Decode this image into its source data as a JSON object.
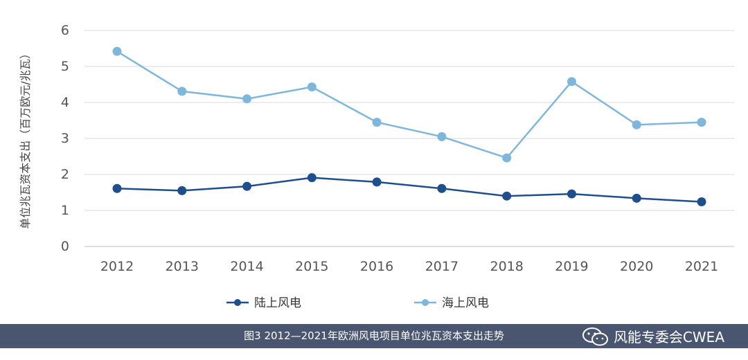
{
  "chart_data": {
    "type": "line",
    "ylabel": "单位兆瓦资本支出（百万欧元/兆瓦）",
    "xlabel": "",
    "categories": [
      "2012",
      "2013",
      "2014",
      "2015",
      "2016",
      "2017",
      "2018",
      "2019",
      "2020",
      "2021"
    ],
    "ylim": [
      0,
      6
    ],
    "yticks": [
      0,
      1,
      2,
      3,
      4,
      5,
      6
    ],
    "grid": true,
    "legend_position": "bottom",
    "series": [
      {
        "name": "陆上风电",
        "color": "#1f4e8c",
        "values": [
          1.61,
          1.55,
          1.67,
          1.91,
          1.79,
          1.61,
          1.4,
          1.46,
          1.34,
          1.24
        ]
      },
      {
        "name": "海上风电",
        "color": "#7fb6dc",
        "values": [
          5.42,
          4.31,
          4.1,
          4.43,
          3.45,
          3.05,
          2.46,
          4.58,
          3.38,
          3.45
        ]
      }
    ]
  },
  "caption": {
    "text": "图3 2012—2021年欧洲风电项目单位兆瓦资本支出走势",
    "watermark_text": "风能专委会CWEA",
    "watermark_icon": "wechat-icon"
  }
}
